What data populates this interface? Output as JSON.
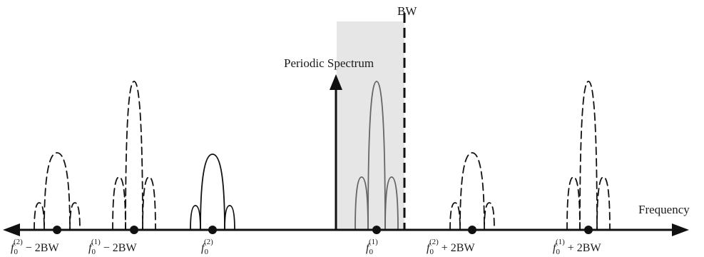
{
  "labels": {
    "bw": "BW",
    "periodic_spectrum": "Periodic Spectrum",
    "frequency": "Frequency"
  },
  "ticks": [
    {
      "id": "f02-minus-2bw",
      "base": "f",
      "sub": "0",
      "sup": "(2)",
      "suffix": " − 2BW"
    },
    {
      "id": "f01-minus-2bw",
      "base": "f",
      "sub": "0",
      "sup": "(1)",
      "suffix": " − 2BW"
    },
    {
      "id": "f02",
      "base": "f",
      "sub": "0",
      "sup": "(2)",
      "suffix": ""
    },
    {
      "id": "f01",
      "base": "f",
      "sub": "0",
      "sup": "(1)",
      "suffix": ""
    },
    {
      "id": "f02-plus-2bw",
      "base": "f",
      "sub": "0",
      "sup": "(2)",
      "suffix": " + 2BW"
    },
    {
      "id": "f01-plus-2bw",
      "base": "f",
      "sub": "0",
      "sup": "(1)",
      "suffix": " + 2BW"
    }
  ],
  "colors": {
    "ink": "#111111",
    "gray_ink": "#666666",
    "band_fill": "#e6e6e6"
  }
}
